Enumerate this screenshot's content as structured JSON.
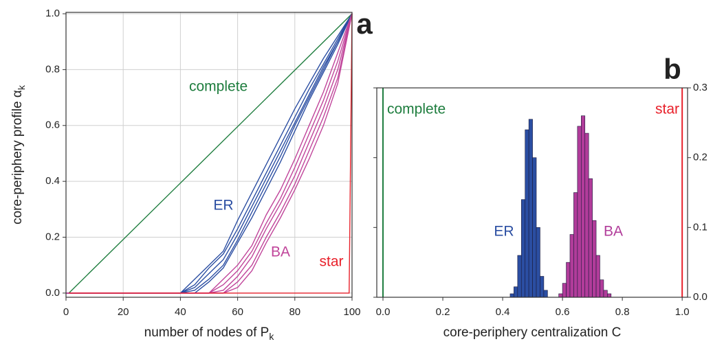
{
  "chart_data": [
    {
      "type": "line",
      "panel": "a",
      "x_label": "number of nodes of P",
      "x_label_sub": "k",
      "y_label": "core-periphery profile α",
      "y_label_sub": "k",
      "xlim": [
        0,
        100
      ],
      "ylim": [
        -0.015,
        1.005
      ],
      "xticks": [
        0,
        20,
        40,
        60,
        80,
        100
      ],
      "yticks": [
        {
          "value": 0,
          "label": "0.0"
        },
        {
          "value": 0.2,
          "label": "0.2"
        },
        {
          "value": 0.4,
          "label": "0.4"
        },
        {
          "value": 0.6,
          "label": "0.6"
        },
        {
          "value": 0.8,
          "label": "0.8"
        },
        {
          "value": 1,
          "label": "1.0"
        }
      ],
      "grid": true,
      "series": [
        {
          "name": "complete",
          "color": "#1e7d3e",
          "x": [
            1,
            100
          ],
          "curves": [
            {
              "values": [
                0,
                1
              ]
            }
          ]
        },
        {
          "name": "ER",
          "color": "#2b4ea2",
          "x": [
            0,
            40,
            45,
            50,
            55,
            60,
            65,
            70,
            75,
            80,
            85,
            90,
            95,
            100
          ],
          "curves": [
            {
              "values": [
                0,
                0,
                0.05,
                0.1,
                0.15,
                0.26,
                0.36,
                0.46,
                0.56,
                0.66,
                0.75,
                0.84,
                0.92,
                1
              ]
            },
            {
              "values": [
                0,
                0,
                0.03,
                0.09,
                0.14,
                0.23,
                0.33,
                0.43,
                0.53,
                0.63,
                0.73,
                0.82,
                0.91,
                1
              ]
            },
            {
              "values": [
                0,
                0,
                0.02,
                0.07,
                0.12,
                0.21,
                0.31,
                0.41,
                0.51,
                0.61,
                0.71,
                0.81,
                0.9,
                1
              ]
            },
            {
              "values": [
                0,
                0,
                0.01,
                0.05,
                0.1,
                0.19,
                0.29,
                0.39,
                0.49,
                0.6,
                0.7,
                0.8,
                0.9,
                1
              ]
            },
            {
              "values": [
                0,
                0,
                0,
                0.04,
                0.09,
                0.18,
                0.27,
                0.37,
                0.47,
                0.58,
                0.69,
                0.79,
                0.89,
                1
              ]
            }
          ]
        },
        {
          "name": "BA",
          "color": "#c0449a",
          "x": [
            0,
            50,
            55,
            60,
            65,
            70,
            75,
            80,
            85,
            90,
            95,
            100
          ],
          "curves": [
            {
              "values": [
                0,
                0,
                0.05,
                0.1,
                0.17,
                0.28,
                0.37,
                0.48,
                0.6,
                0.72,
                0.86,
                1
              ]
            },
            {
              "values": [
                0,
                0,
                0.03,
                0.08,
                0.15,
                0.25,
                0.34,
                0.45,
                0.57,
                0.69,
                0.83,
                1
              ]
            },
            {
              "values": [
                0,
                0,
                0.01,
                0.06,
                0.13,
                0.23,
                0.32,
                0.42,
                0.54,
                0.66,
                0.8,
                1
              ]
            },
            {
              "values": [
                0,
                0,
                0,
                0.04,
                0.1,
                0.2,
                0.29,
                0.39,
                0.51,
                0.63,
                0.77,
                1
              ]
            },
            {
              "values": [
                0,
                0,
                0,
                0.02,
                0.08,
                0.18,
                0.27,
                0.37,
                0.48,
                0.6,
                0.75,
                1
              ]
            }
          ]
        },
        {
          "name": "star",
          "color": "#e8202a",
          "x": [
            1,
            99,
            100
          ],
          "curves": [
            {
              "values": [
                0,
                0,
                1
              ]
            }
          ]
        }
      ]
    },
    {
      "type": "histogram",
      "panel": "b",
      "x_label": "core-periphery centralization C",
      "xlim": [
        -0.0207,
        1.018
      ],
      "ylim": [
        0,
        0.3
      ],
      "xticks": [
        {
          "value": 0,
          "label": "0.0"
        },
        {
          "value": 0.2,
          "label": "0.2"
        },
        {
          "value": 0.4,
          "label": "0.4"
        },
        {
          "value": 0.6,
          "label": "0.6"
        },
        {
          "value": 0.8,
          "label": "0.8"
        },
        {
          "value": 1,
          "label": "1.0"
        }
      ],
      "yticks": [
        {
          "value": 0,
          "label": "0.0"
        },
        0.1,
        0.2,
        0.3
      ],
      "y_axis_side": "right",
      "series": [
        {
          "name": "ER",
          "color": "#2b4ea2",
          "bins": [
            0.425,
            0.4375,
            0.45,
            0.4625,
            0.475,
            0.4875,
            0.5,
            0.5125,
            0.525,
            0.5375,
            0.55
          ],
          "values": [
            0.005,
            0.015,
            0.06,
            0.14,
            0.24,
            0.255,
            0.2,
            0.1,
            0.03,
            0.01
          ]
        },
        {
          "name": "BA",
          "color": "#b13c9a",
          "bins": [
            0.5875,
            0.6,
            0.6125,
            0.625,
            0.6375,
            0.65,
            0.6625,
            0.675,
            0.6875,
            0.7,
            0.7125,
            0.725,
            0.7375,
            0.75,
            0.7625
          ],
          "values": [
            0.005,
            0.02,
            0.05,
            0.09,
            0.15,
            0.245,
            0.26,
            0.235,
            0.17,
            0.11,
            0.06,
            0.025,
            0.01,
            0.005
          ]
        }
      ],
      "vlines": [
        {
          "name": "complete",
          "x": 0,
          "color": "#1e7d3e"
        },
        {
          "name": "star",
          "x": 1,
          "color": "#e8202a"
        }
      ]
    }
  ]
}
